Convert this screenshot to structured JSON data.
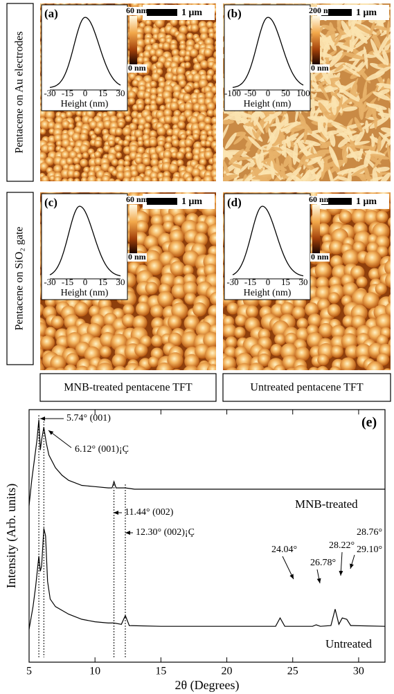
{
  "afm": {
    "row_labels": [
      "Pentacene on Au electrodes",
      "Pentacene on SiO₂ gate"
    ],
    "column_labels": [
      "MNB-treated pentacene TFT",
      "Untreated pentacene TFT"
    ],
    "panels": [
      {
        "label": "(a)",
        "scale_bar": "1 μm",
        "colorbar_max": "60 nm",
        "colorbar_min": "0 nm",
        "inset_xticks": [
          -30,
          -15,
          0,
          15,
          30
        ],
        "inset_xlabel": "Height (nm)"
      },
      {
        "label": "(b)",
        "scale_bar": "1 μm",
        "colorbar_max": "200 nm",
        "colorbar_min": "0 nm",
        "inset_xticks": [
          -100,
          -50,
          0,
          50,
          100
        ],
        "inset_xlabel": "Height (nm)"
      },
      {
        "label": "(c)",
        "scale_bar": "1 μm",
        "colorbar_max": "60 nm",
        "colorbar_min": "0 nm",
        "inset_xticks": [
          -30,
          -15,
          0,
          15,
          30
        ],
        "inset_xlabel": "Height (nm)"
      },
      {
        "label": "(d)",
        "scale_bar": "1 μm",
        "colorbar_max": "60 nm",
        "colorbar_min": "0 nm",
        "inset_xticks": [
          -30,
          -15,
          0,
          15,
          30
        ],
        "inset_xlabel": "Height (nm)"
      }
    ]
  },
  "chart_data": {
    "type": "line",
    "panel_label": "(e)",
    "x_label": "2θ (Degrees)",
    "y_label": "Intensity (Arb. units)",
    "xlim": [
      5,
      32
    ],
    "xticks": [
      5,
      10,
      15,
      20,
      25,
      30
    ],
    "ylim": [
      0,
      100
    ],
    "series": [
      {
        "name": "MNB-treated",
        "color": "#000000",
        "x": [
          5.0,
          5.2,
          5.4,
          5.6,
          5.74,
          5.85,
          5.95,
          6.12,
          6.3,
          6.5,
          7,
          7.5,
          8,
          9,
          10,
          11,
          11.3,
          11.44,
          11.6,
          12.3,
          13,
          15,
          20,
          25,
          32
        ],
        "values": [
          62,
          72,
          80,
          88,
          96,
          84,
          88,
          93,
          87,
          82,
          77,
          74,
          72,
          70,
          69.5,
          69,
          69,
          71.5,
          69,
          69,
          68.5,
          68.5,
          68.5,
          68.5,
          68.5
        ]
      },
      {
        "name": "Untreated",
        "color": "#000000",
        "x": [
          5.0,
          5.3,
          5.5,
          5.74,
          5.85,
          5.95,
          6.12,
          6.25,
          6.4,
          6.6,
          7,
          8,
          9,
          10,
          11,
          11.44,
          12.0,
          12.3,
          12.6,
          15,
          20,
          23.7,
          24.04,
          24.4,
          26.5,
          26.78,
          27.1,
          27.9,
          28.22,
          28.5,
          28.76,
          29.1,
          29.4,
          32
        ],
        "values": [
          13,
          22,
          30,
          42,
          36,
          38,
          53,
          50,
          32,
          25,
          22,
          19,
          17,
          16,
          15.5,
          15.5,
          15,
          18.5,
          14.5,
          14.2,
          14.2,
          14.2,
          17.5,
          14.2,
          14.2,
          14.8,
          14.2,
          14.5,
          21,
          15,
          17.5,
          17,
          14.5,
          14.2
        ]
      }
    ],
    "peak_lines": [
      5.74,
      6.12,
      11.44,
      12.3
    ],
    "annotations": [
      "5.74° (001)",
      "6.12° (001)¡Ç",
      "11.44° (002)",
      "12.30° (002)¡Ç",
      "24.04°",
      "26.78°",
      "28.22°",
      "28.76°",
      "29.10°"
    ]
  }
}
